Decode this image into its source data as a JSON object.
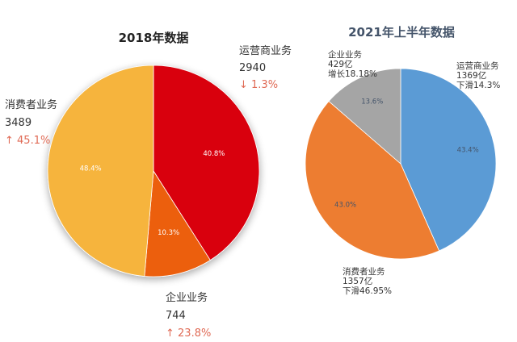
{
  "chart_data": [
    {
      "type": "pie",
      "title": "2018年数据",
      "categories": [
        "运营商业务",
        "企业业务",
        "消费者业务"
      ],
      "values": [
        2940,
        744,
        3489
      ],
      "percent_labels": [
        "40.8%",
        "10.3%",
        "48.4%"
      ],
      "changes": [
        "↓ 1.3%",
        "↑ 23.8%",
        "↑ 45.1%"
      ],
      "colors": [
        "#d9000f",
        "#ec5f0c",
        "#f6b43c"
      ]
    },
    {
      "type": "pie",
      "title": "2021年上半年数据",
      "categories": [
        "运营商业务",
        "消费者业务",
        "企业业务"
      ],
      "values": [
        1369,
        1357,
        429
      ],
      "value_texts": [
        "1369亿",
        "1357亿",
        "429亿"
      ],
      "percent_labels": [
        "43.4%",
        "43.0%",
        "13.6%"
      ],
      "changes": [
        "下滑14.3%",
        "下滑46.95%",
        "增长18.18%"
      ],
      "colors": [
        "#5b9bd5",
        "#ed7d31",
        "#a5a5a5"
      ]
    }
  ]
}
